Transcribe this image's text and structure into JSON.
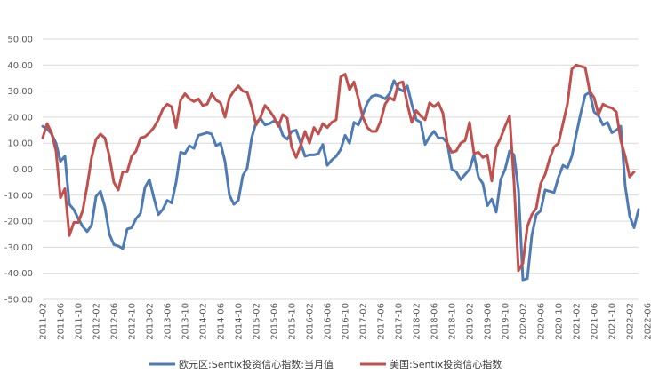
{
  "chart_data": {
    "type": "line",
    "title": "",
    "xlabel": "",
    "ylabel": "",
    "ylim": [
      -50,
      50
    ],
    "y_ticks": [
      "50.00",
      "40.00",
      "30.00",
      "20.00",
      "10.00",
      "0.00",
      "-10.00",
      "-20.00",
      "-30.00",
      "-40.00",
      "-50.00"
    ],
    "x_start": "2011-02",
    "x_tick_labels": [
      "2011-02",
      "2011-06",
      "2011-10",
      "2012-02",
      "2012-06",
      "2012-10",
      "2013-02",
      "2013-06",
      "2013-10",
      "2014-02",
      "2014-06",
      "2014-10",
      "2015-02",
      "2015-06",
      "2015-10",
      "2016-02",
      "2016-06",
      "2016-10",
      "2017-02",
      "2017-06",
      "2017-10",
      "2018-02",
      "2018-06",
      "2018-10",
      "2019-02",
      "2019-06",
      "2019-10",
      "2020-02",
      "2020-06",
      "2020-10",
      "2021-02",
      "2021-06",
      "2021-10",
      "2022-02",
      "2022-06"
    ],
    "grid": true,
    "legend_position": "bottom",
    "series": [
      {
        "name": "欧元区:Sentix投资信心指数:当月值",
        "color": "#4F7BB5",
        "values": [
          16.5,
          15.5,
          13.5,
          10,
          3,
          5,
          -13.5,
          -15.5,
          -19,
          -22,
          -24,
          -21.5,
          -10.5,
          -8.5,
          -14.5,
          -25,
          -29,
          -29.5,
          -30.5,
          -23,
          -22.5,
          -19,
          -17,
          -7,
          -4,
          -11,
          -17.5,
          -15.5,
          -12,
          -13,
          -5,
          6.5,
          6,
          9,
          8,
          13,
          13.5,
          14,
          13.5,
          9,
          10,
          3,
          -10,
          -13.5,
          -12,
          -2.5,
          0.5,
          12,
          18,
          19.5,
          17,
          17.5,
          18.5,
          18,
          13,
          11.5,
          14.5,
          15,
          10,
          5,
          5.5,
          5.5,
          6,
          9.5,
          1.5,
          3.5,
          5,
          7.5,
          13,
          10,
          18,
          17,
          21,
          25.5,
          28,
          28.5,
          28,
          27,
          29,
          34,
          31,
          30,
          32,
          25,
          19,
          18,
          9.5,
          12.5,
          14.5,
          12,
          12,
          10,
          0,
          -1,
          -4,
          -2,
          0,
          5.5,
          -3,
          -5.5,
          -14,
          -11.5,
          -16.5,
          -4,
          0,
          7,
          5.5,
          -8,
          -42.5,
          -42,
          -25.5,
          -17.5,
          -16,
          -8,
          -8.5,
          -9,
          -3,
          1.5,
          0.5,
          5,
          13.5,
          21.5,
          28.5,
          29.5,
          22,
          20.5,
          17,
          18,
          14,
          15,
          16.5,
          -6.5,
          -18,
          -22.5,
          -15.5
        ]
      },
      {
        "name": "美国:Sentix投资信心指数",
        "color": "#C0504D",
        "values": [
          12,
          17.5,
          14,
          7,
          -11,
          -7.5,
          -25.5,
          -20.5,
          -20.5,
          -16,
          -6.5,
          4.5,
          11.5,
          13.5,
          12,
          5,
          -5,
          -8,
          -1,
          -1,
          5,
          7,
          12,
          12.5,
          14,
          16,
          19,
          23,
          25,
          24,
          16,
          26.5,
          29,
          27,
          26,
          27,
          24.5,
          25,
          29,
          26.5,
          25.5,
          20,
          27.5,
          30,
          32,
          30,
          29.5,
          24,
          17,
          20,
          24.5,
          22.5,
          20,
          16.5,
          21,
          19.5,
          8.5,
          4.5,
          9,
          14.5,
          10,
          16,
          13.5,
          17.5,
          16,
          18,
          19,
          35.5,
          36.5,
          30.5,
          33.5,
          27,
          20,
          16,
          14.5,
          14.5,
          18.5,
          25,
          27.5,
          26.5,
          33,
          33.5,
          25,
          18,
          22.5,
          20.5,
          19,
          25.5,
          24,
          25.5,
          21.5,
          10,
          6.5,
          7,
          10,
          11,
          18,
          6,
          6.5,
          4.5,
          5.5,
          -4.5,
          8.5,
          12,
          16.5,
          20.5,
          -5,
          -39,
          -36,
          -22,
          -17.5,
          -15,
          -5.5,
          -2,
          4,
          8.5,
          10,
          17.5,
          25,
          38.5,
          40,
          39.5,
          39,
          30,
          27.5,
          21,
          25,
          24,
          23.5,
          22,
          11,
          5,
          -3,
          -1
        ]
      }
    ]
  }
}
